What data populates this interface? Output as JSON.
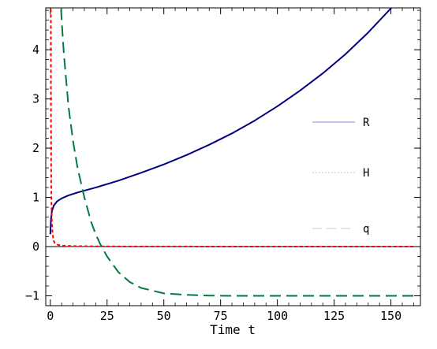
{
  "chart_data": {
    "type": "line",
    "xlabel": "Time t",
    "ylabel": "",
    "xlim": [
      -2,
      163
    ],
    "ylim": [
      -1.2,
      4.85
    ],
    "x_ticks": [
      0,
      25,
      50,
      75,
      100,
      125,
      150
    ],
    "y_ticks": [
      -1,
      0,
      1,
      2,
      3,
      4
    ],
    "legend_position": "right",
    "series": [
      {
        "name": "R",
        "color": "#000080",
        "style": "solid",
        "x": [
          0,
          0.3,
          0.7,
          1.5,
          3,
          5,
          8,
          12,
          16,
          20,
          30,
          40,
          50,
          60,
          70,
          80,
          90,
          100,
          110,
          120,
          130,
          140,
          150,
          160
        ],
        "y": [
          0.25,
          0.55,
          0.72,
          0.83,
          0.92,
          0.98,
          1.04,
          1.1,
          1.15,
          1.2,
          1.34,
          1.5,
          1.67,
          1.86,
          2.07,
          2.3,
          2.56,
          2.85,
          3.17,
          3.52,
          3.91,
          4.35,
          4.84,
          5.35
        ]
      },
      {
        "name": "H",
        "color": "#ff0000",
        "style": "short-dash",
        "x": [
          0.2,
          0.25,
          0.3,
          0.4,
          0.5,
          0.7,
          1,
          1.5,
          2,
          3,
          5,
          10,
          20,
          40,
          80,
          120,
          160
        ],
        "y": [
          5.5,
          4.2,
          2.7,
          1.4,
          0.9,
          0.5,
          0.25,
          0.12,
          0.07,
          0.04,
          0.02,
          0.01,
          0.005,
          0.002,
          0.001,
          0.0005,
          0.0003
        ]
      },
      {
        "name": "q",
        "color": "#007a3d",
        "style": "long-dash",
        "x": [
          4,
          5,
          6,
          8,
          10,
          12,
          15,
          18,
          20,
          22,
          25,
          30,
          35,
          40,
          50,
          60,
          70,
          80,
          100,
          120,
          140,
          160
        ],
        "y": [
          5.5,
          4.6,
          3.9,
          2.85,
          2.15,
          1.6,
          1.0,
          0.5,
          0.25,
          0.05,
          -0.2,
          -0.52,
          -0.72,
          -0.84,
          -0.95,
          -0.98,
          -0.995,
          -1.0,
          -1.0,
          -1.0,
          -1.0,
          -1.0
        ]
      }
    ]
  }
}
